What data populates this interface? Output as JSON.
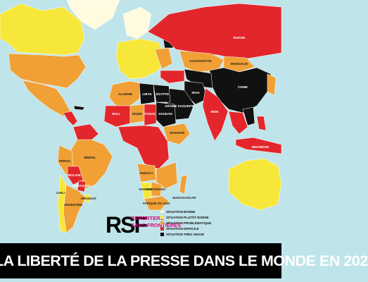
{
  "title": "LA LIBERTÉ DE LA PRESSE DANS LE MONDE EN 202",
  "logo": {
    "mark": "RSF",
    "line1": "REPORTERS",
    "line2": "SANS FRONTIÈRES"
  },
  "legend": [
    "SITUATION BONNE",
    "SITUATION PLUTÔT BONNE",
    "SITUATION PROBLÉMATIQUE",
    "SITUATION DIFFICILE",
    "SITUATION TRÈS GRAVE"
  ],
  "countries": [
    "RUSSIE",
    "CHINE",
    "KAZAKHSTAN",
    "MONGOLIE",
    "IRAN",
    "ARABIE SAOUDITE",
    "INDE",
    "INDONÉSIE",
    "BRÉSIL",
    "PÉROU",
    "BOLIVIE",
    "ARGENTINE",
    "CHILI",
    "PARAGUAY",
    "URUGUAY",
    "ALGÉRIE",
    "LIBYE",
    "ÉGYPTE",
    "MALI",
    "NIGER",
    "TCHAD",
    "SOUDAN",
    "ÉTHIOPIE",
    "ANGOLA",
    "NAMIBIE",
    "BOTSWANA",
    "AFRIQUE DU SUD",
    "MADAGASCAR"
  ]
}
